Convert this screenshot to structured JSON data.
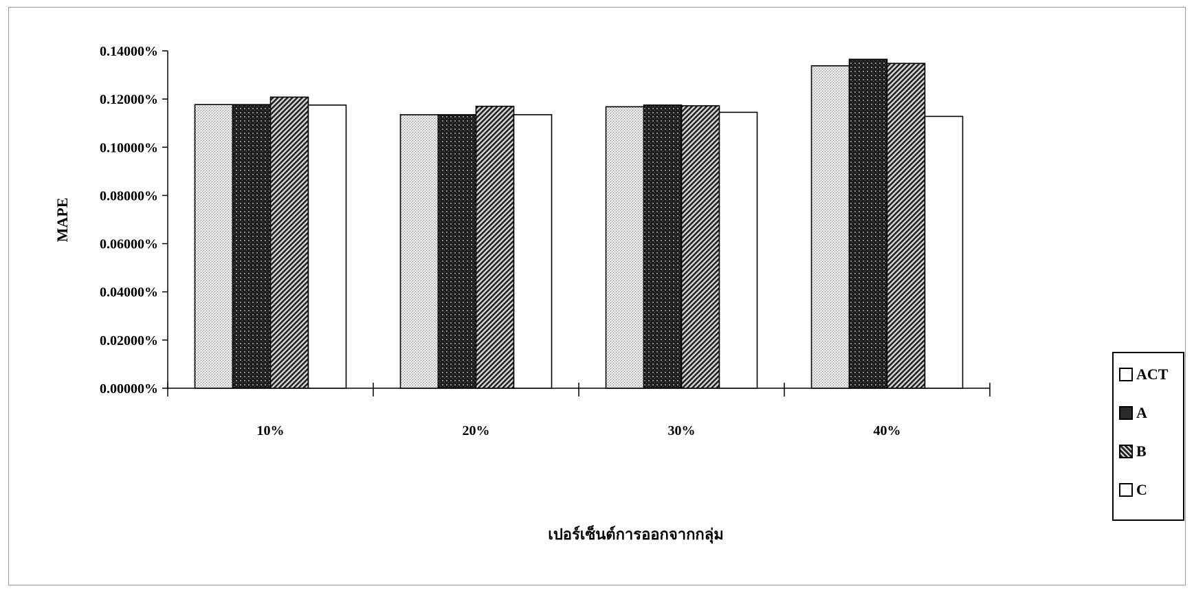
{
  "chart_data": {
    "type": "bar",
    "title": "",
    "xlabel": "เปอร์เซ็นต์การออกจากกลุ่ม",
    "ylabel": "MAPE",
    "categories": [
      "10%",
      "20%",
      "30%",
      "40%"
    ],
    "ylim": [
      0,
      0.14
    ],
    "yticks": [
      0,
      0.02,
      0.04,
      0.06,
      0.08,
      0.1,
      0.12,
      0.14
    ],
    "ytick_labels": [
      "0.00000%",
      "0.02000%",
      "0.04000%",
      "0.06000%",
      "0.08000%",
      "0.10000%",
      "0.12000%",
      "0.14000%"
    ],
    "grid": false,
    "legend_position": "right",
    "series": [
      {
        "name": "ACT",
        "values": [
          0.1177,
          0.1135,
          0.1168,
          0.1338
        ]
      },
      {
        "name": "A",
        "values": [
          0.1177,
          0.1135,
          0.1175,
          0.1365
        ]
      },
      {
        "name": "B",
        "values": [
          0.1208,
          0.117,
          0.1172,
          0.1348
        ]
      },
      {
        "name": "C",
        "values": [
          0.1175,
          0.1135,
          0.1145,
          0.1128
        ]
      }
    ]
  },
  "legend": {
    "items": [
      {
        "label": "ACT",
        "swatch": "light-dotted"
      },
      {
        "label": "A",
        "swatch": "dark-grid"
      },
      {
        "label": "B",
        "swatch": "diagonal-hatch"
      },
      {
        "label": "C",
        "swatch": "white"
      }
    ]
  },
  "colors": {
    "axis": "#000000",
    "bar_outline": "#000000",
    "act_fill": "#d9d9d9",
    "a_fill": "#2e2e2e",
    "b_fill": "#5a5a5a",
    "c_fill": "#ffffff"
  }
}
